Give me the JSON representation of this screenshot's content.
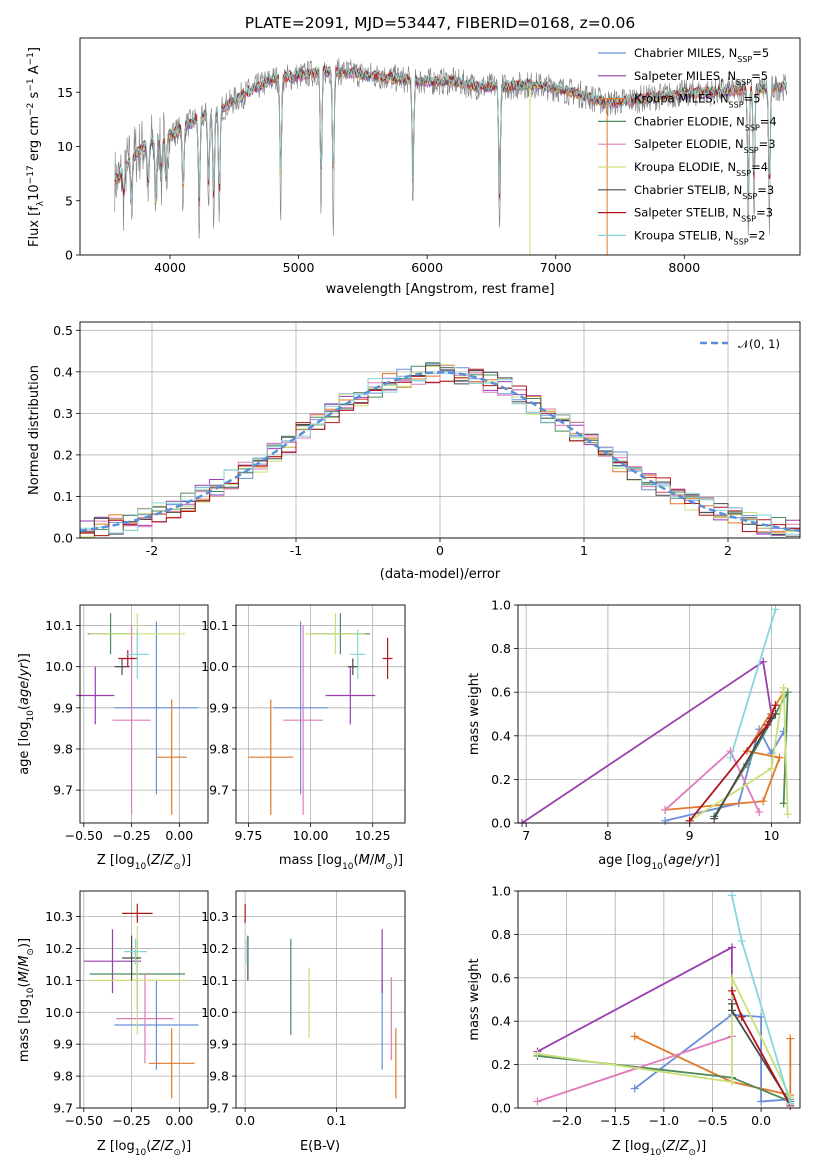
{
  "title": "PLATE=2091, MJD=53447, FIBERID=0168, z=0.06",
  "colors": {
    "Chabrier MILES": "#6a8edb",
    "Salpeter MILES": "#9a3fb0",
    "Kroupa MILES": "#e07a2a",
    "Chabrier ELODIE": "#4f8a5b",
    "Salpeter ELODIE": "#e07bb9",
    "Kroupa ELODIE": "#c9e07a",
    "Chabrier STELIB": "#4a4a4a",
    "Salpeter STELIB": "#b0161c",
    "Kroupa STELIB": "#86d6dc",
    "data": "#7f7f7f",
    "normal": "#5b8fd6"
  },
  "chart_data": [
    {
      "id": "spectrum",
      "type": "line",
      "xlabel": "wavelength [Angstrom, rest frame]",
      "ylabel": "Flux [f_λ 10^-17 erg cm^-2 s^-1 A^-1]",
      "xlim": [
        3300,
        8900
      ],
      "ylim": [
        0,
        20
      ],
      "xticks": [
        4000,
        5000,
        6000,
        7000,
        8000
      ],
      "yticks": [
        0,
        5,
        10,
        15
      ],
      "grid": false,
      "legend_position": "right",
      "legend": [
        {
          "label": "Chabrier MILES, N",
          "sub": "SSP",
          "eq": "=5",
          "model": "Chabrier MILES"
        },
        {
          "label": "Salpeter MILES, N",
          "sub": "SSP",
          "eq": "=5",
          "model": "Salpeter MILES"
        },
        {
          "label": "Kroupa MILES, N",
          "sub": "SSP",
          "eq": "=5",
          "model": "Kroupa MILES"
        },
        {
          "label": "Chabrier ELODIE, N",
          "sub": "SSP",
          "eq": "=4",
          "model": "Chabrier ELODIE"
        },
        {
          "label": "Salpeter ELODIE, N",
          "sub": "SSP",
          "eq": "=3",
          "model": "Salpeter ELODIE"
        },
        {
          "label": "Kroupa ELODIE, N",
          "sub": "SSP",
          "eq": "=4",
          "model": "Kroupa ELODIE"
        },
        {
          "label": "Chabrier STELIB, N",
          "sub": "SSP",
          "eq": "=3",
          "model": "Chabrier STELIB"
        },
        {
          "label": "Salpeter STELIB, N",
          "sub": "SSP",
          "eq": "=3",
          "model": "Salpeter STELIB"
        },
        {
          "label": "Kroupa STELIB, N",
          "sub": "SSP",
          "eq": "=2",
          "model": "Kroupa STELIB"
        }
      ],
      "continuum": [
        [
          3600,
          7
        ],
        [
          3700,
          9
        ],
        [
          3800,
          10
        ],
        [
          3900,
          10.5
        ],
        [
          4000,
          11
        ],
        [
          4200,
          12.5
        ],
        [
          4400,
          13.5
        ],
        [
          4600,
          15
        ],
        [
          4800,
          16.2
        ],
        [
          5000,
          16.5
        ],
        [
          5200,
          17
        ],
        [
          5400,
          16.8
        ],
        [
          5600,
          16.5
        ],
        [
          5800,
          16.2
        ],
        [
          6000,
          16
        ],
        [
          6200,
          16
        ],
        [
          6400,
          15.5
        ],
        [
          6600,
          15.5
        ],
        [
          6800,
          15.7
        ],
        [
          7000,
          15.4
        ],
        [
          7200,
          14.8
        ],
        [
          7400,
          14
        ],
        [
          7600,
          14.3
        ],
        [
          7800,
          14.6
        ],
        [
          8000,
          14.9
        ],
        [
          8200,
          15
        ],
        [
          8400,
          15.2
        ],
        [
          8800,
          15.5
        ]
      ],
      "dips": [
        [
          3640,
          3
        ],
        [
          3700,
          5
        ],
        [
          3830,
          5
        ],
        [
          3890,
          7
        ],
        [
          3933,
          4
        ],
        [
          3968,
          5.5
        ],
        [
          4102,
          8
        ],
        [
          4227,
          10.5
        ],
        [
          4300,
          9
        ],
        [
          4340,
          10.5
        ],
        [
          4383,
          11
        ],
        [
          4861,
          12.5
        ],
        [
          5175,
          13
        ],
        [
          5270,
          14
        ],
        [
          5890,
          12
        ],
        [
          6563,
          13.8
        ],
        [
          8498,
          13
        ],
        [
          8542,
          12.5
        ],
        [
          8662,
          13
        ]
      ],
      "spikes": [
        {
          "x": 6800,
          "model": "Kroupa ELODIE"
        },
        {
          "x": 7400,
          "model": "Kroupa MILES"
        }
      ]
    },
    {
      "id": "residuals",
      "type": "histogram",
      "xlabel": "(data-model)/error",
      "ylabel": "Normed distribution",
      "xlim": [
        -2.5,
        2.5
      ],
      "ylim": [
        0,
        0.52
      ],
      "xticks": [
        -2,
        -1,
        0,
        1,
        2
      ],
      "yticks": [
        0,
        0.1,
        0.2,
        0.3,
        0.4,
        0.5
      ],
      "grid": true,
      "bin_width": 0.1,
      "legend_position": "top-right",
      "normal_label": "𝒩(0, 1)",
      "normal": {
        "mean": 0,
        "sigma": 1
      }
    },
    {
      "id": "age-vs-Z",
      "type": "errorbar",
      "xlabel": "Z [log10(Z/Z⊙)]",
      "ylabel": "age [log10(age/yr)]",
      "xlim": [
        -0.52,
        0.15
      ],
      "ylim": [
        9.62,
        10.15
      ],
      "xticks": [
        -0.5,
        -0.25,
        0.0
      ],
      "xtick_labels": [
        "−0.50",
        "−0.25",
        "0.00"
      ],
      "yticks": [
        9.7,
        9.8,
        9.9,
        10.0,
        10.1
      ],
      "grid": true,
      "points": [
        {
          "model": "Chabrier MILES",
          "x": -0.12,
          "xerr": 0.22,
          "y": 9.9,
          "yerr": 0.21
        },
        {
          "model": "Salpeter MILES",
          "x": -0.44,
          "xerr": 0.1,
          "y": 9.93,
          "yerr": 0.07
        },
        {
          "model": "Kroupa MILES",
          "x": -0.04,
          "xerr": 0.08,
          "y": 9.78,
          "yerr": 0.14
        },
        {
          "model": "Chabrier ELODIE",
          "x": -0.36,
          "xerr": 0.12,
          "y": 10.08,
          "yerr": 0.05
        },
        {
          "model": "Salpeter ELODIE",
          "x": -0.25,
          "xerr": 0.1,
          "y": 9.87,
          "yerr": 0.23
        },
        {
          "model": "Kroupa ELODIE",
          "x": -0.22,
          "xerr": 0.25,
          "y": 10.08,
          "yerr": 0.05
        },
        {
          "model": "Chabrier STELIB",
          "x": -0.3,
          "xerr": 0.04,
          "y": 10.0,
          "yerr": 0.02
        },
        {
          "model": "Salpeter STELIB",
          "x": -0.27,
          "xerr": 0.05,
          "y": 10.02,
          "yerr": 0.02
        },
        {
          "model": "Kroupa STELIB",
          "x": -0.22,
          "xerr": 0.06,
          "y": 10.03,
          "yerr": 0.06
        }
      ]
    },
    {
      "id": "age-vs-mass",
      "type": "errorbar",
      "xlabel": "mass [log10(M/M⊙)]",
      "ylabel": "",
      "xlim": [
        9.7,
        10.38
      ],
      "ylim": [
        9.62,
        10.15
      ],
      "xticks": [
        9.75,
        10.0,
        10.25
      ],
      "xtick_labels": [
        "9.75",
        "10.00",
        "10.25"
      ],
      "yticks": [
        9.7,
        9.8,
        9.9,
        10.0,
        10.1
      ],
      "grid": true,
      "points": [
        {
          "model": "Chabrier MILES",
          "x": 9.96,
          "xerr": 0.11,
          "y": 9.9,
          "yerr": 0.21
        },
        {
          "model": "Salpeter MILES",
          "x": 10.16,
          "xerr": 0.1,
          "y": 9.93,
          "yerr": 0.07
        },
        {
          "model": "Kroupa MILES",
          "x": 9.84,
          "xerr": 0.09,
          "y": 9.78,
          "yerr": 0.14
        },
        {
          "model": "Chabrier ELODIE",
          "x": 10.12,
          "xerr": 0.12,
          "y": 10.08,
          "yerr": 0.05
        },
        {
          "model": "Salpeter ELODIE",
          "x": 9.97,
          "xerr": 0.08,
          "y": 9.87,
          "yerr": 0.23
        },
        {
          "model": "Kroupa ELODIE",
          "x": 10.1,
          "xerr": 0.12,
          "y": 10.08,
          "yerr": 0.05
        },
        {
          "model": "Chabrier STELIB",
          "x": 10.17,
          "xerr": 0.02,
          "y": 10.0,
          "yerr": 0.02
        },
        {
          "model": "Salpeter STELIB",
          "x": 10.31,
          "xerr": 0.02,
          "y": 10.02,
          "yerr": 0.05
        },
        {
          "model": "Kroupa STELIB",
          "x": 10.19,
          "xerr": 0.03,
          "y": 10.03,
          "yerr": 0.06
        }
      ]
    },
    {
      "id": "weight-vs-age",
      "type": "line",
      "xlabel": "age [log10(age/yr)]",
      "ylabel": "mass weight",
      "xlim": [
        6.9,
        10.35
      ],
      "ylim": [
        0,
        1
      ],
      "xticks": [
        7,
        8,
        9,
        10
      ],
      "yticks": [
        0,
        0.2,
        0.4,
        0.6,
        0.8,
        1.0
      ],
      "ytick_labels": [
        "0.0",
        "0.2",
        "0.4",
        "0.6",
        "0.8",
        "1.0"
      ],
      "grid": true,
      "series": [
        {
          "model": "Chabrier MILES",
          "points": [
            [
              8.7,
              0.01
            ],
            [
              9.6,
              0.09
            ],
            [
              9.85,
              0.43
            ],
            [
              10.0,
              0.32
            ],
            [
              10.15,
              0.42
            ]
          ]
        },
        {
          "model": "Salpeter MILES",
          "points": [
            [
              6.95,
              0.0
            ],
            [
              9.9,
              0.74
            ],
            [
              10.0,
              0.5
            ]
          ]
        },
        {
          "model": "Kroupa MILES",
          "points": [
            [
              8.7,
              0.06
            ],
            [
              9.9,
              0.1
            ],
            [
              10.1,
              0.3
            ],
            [
              9.7,
              0.33
            ],
            [
              10.15,
              0.6
            ]
          ]
        },
        {
          "model": "Chabrier ELODIE",
          "points": [
            [
              9.3,
              0.03
            ],
            [
              9.7,
              0.27
            ],
            [
              10.2,
              0.6
            ],
            [
              10.15,
              0.09
            ]
          ]
        },
        {
          "model": "Salpeter ELODIE",
          "points": [
            [
              8.7,
              0.06
            ],
            [
              9.5,
              0.33
            ],
            [
              9.85,
              0.05
            ]
          ]
        },
        {
          "model": "Kroupa ELODIE",
          "points": [
            [
              9.0,
              0.01
            ],
            [
              10.0,
              0.25
            ],
            [
              10.15,
              0.62
            ],
            [
              10.2,
              0.04
            ]
          ]
        },
        {
          "model": "Chabrier STELIB",
          "points": [
            [
              9.3,
              0.02
            ],
            [
              10.0,
              0.48
            ],
            [
              10.05,
              0.5
            ]
          ]
        },
        {
          "model": "Salpeter STELIB",
          "points": [
            [
              9.0,
              0.01
            ],
            [
              9.95,
              0.45
            ],
            [
              10.05,
              0.54
            ]
          ]
        },
        {
          "model": "Kroupa STELIB",
          "points": [
            [
              9.5,
              0.3
            ],
            [
              10.05,
              0.98
            ]
          ]
        }
      ]
    },
    {
      "id": "mass-vs-Z",
      "type": "errorbar",
      "xlabel": "Z [log10(Z/Z⊙)]",
      "ylabel": "mass [log10(M/M⊙)]",
      "xlim": [
        -0.52,
        0.15
      ],
      "ylim": [
        9.7,
        10.38
      ],
      "xticks": [
        -0.5,
        -0.25,
        0.0
      ],
      "xtick_labels": [
        "−0.50",
        "−0.25",
        "0.00"
      ],
      "yticks": [
        9.7,
        9.8,
        9.9,
        10.0,
        10.1,
        10.2,
        10.3
      ],
      "grid": true,
      "points": [
        {
          "model": "Chabrier MILES",
          "x": -0.12,
          "xerr": 0.22,
          "y": 9.96,
          "yerr": 0.14
        },
        {
          "model": "Salpeter MILES",
          "x": -0.35,
          "xerr": 0.15,
          "y": 10.16,
          "yerr": 0.1
        },
        {
          "model": "Kroupa MILES",
          "x": -0.04,
          "xerr": 0.12,
          "y": 9.84,
          "yerr": 0.11
        },
        {
          "model": "Chabrier ELODIE",
          "x": -0.22,
          "xerr": 0.25,
          "y": 10.12,
          "yerr": 0.11
        },
        {
          "model": "Salpeter ELODIE",
          "x": -0.18,
          "xerr": 0.15,
          "y": 9.98,
          "yerr": 0.14
        },
        {
          "model": "Kroupa ELODIE",
          "x": -0.22,
          "xerr": 0.25,
          "y": 10.1,
          "yerr": 0.17
        },
        {
          "model": "Chabrier STELIB",
          "x": -0.25,
          "xerr": 0.05,
          "y": 10.17,
          "yerr": 0.07
        },
        {
          "model": "Salpeter STELIB",
          "x": -0.22,
          "xerr": 0.08,
          "y": 10.31,
          "yerr": 0.03
        },
        {
          "model": "Kroupa STELIB",
          "x": -0.23,
          "xerr": 0.06,
          "y": 10.19,
          "yerr": 0.04
        }
      ]
    },
    {
      "id": "mass-vs-EBV",
      "type": "errorbar",
      "xlabel": "E(B-V)",
      "ylabel": "",
      "xlim": [
        -0.01,
        0.175
      ],
      "ylim": [
        9.7,
        10.38
      ],
      "xticks": [
        0.0,
        0.1
      ],
      "xtick_labels": [
        "0.0",
        "0.1"
      ],
      "yticks": [
        9.7,
        9.8,
        9.9,
        10.0,
        10.1,
        10.2,
        10.3
      ],
      "grid": true,
      "points": [
        {
          "model": "Chabrier MILES",
          "x": 0.15,
          "xerr": 0.0,
          "y": 9.96,
          "yerr": 0.14
        },
        {
          "model": "Salpeter MILES",
          "x": 0.15,
          "xerr": 0.0,
          "y": 10.16,
          "yerr": 0.1
        },
        {
          "model": "Kroupa MILES",
          "x": 0.165,
          "xerr": 0.0,
          "y": 9.84,
          "yerr": 0.11
        },
        {
          "model": "Chabrier ELODIE",
          "x": 0.05,
          "xerr": 0.0,
          "y": 10.08,
          "yerr": 0.15
        },
        {
          "model": "Salpeter ELODIE",
          "x": 0.16,
          "xerr": 0.0,
          "y": 9.98,
          "yerr": 0.13
        },
        {
          "model": "Kroupa ELODIE",
          "x": 0.07,
          "xerr": 0.0,
          "y": 10.03,
          "yerr": 0.11
        },
        {
          "model": "Chabrier STELIB",
          "x": 0.003,
          "xerr": 0.0,
          "y": 10.17,
          "yerr": 0.07
        },
        {
          "model": "Salpeter STELIB",
          "x": 0.0,
          "xerr": 0.0,
          "y": 10.31,
          "yerr": 0.03
        },
        {
          "model": "Kroupa STELIB",
          "x": 0.002,
          "xerr": 0.0,
          "y": 10.19,
          "yerr": 0.04
        }
      ]
    },
    {
      "id": "weight-vs-Z",
      "type": "line",
      "xlabel": "Z [log10(Z/Z⊙)]",
      "ylabel": "mass weight",
      "xlim": [
        -2.5,
        0.4
      ],
      "ylim": [
        0,
        1
      ],
      "xticks": [
        -2.0,
        -1.5,
        -1.0,
        -0.5,
        0.0
      ],
      "xtick_labels": [
        "−2.0",
        "−1.5",
        "−1.0",
        "−0.5",
        "0.0"
      ],
      "yticks": [
        0,
        0.2,
        0.4,
        0.6,
        0.8,
        1.0
      ],
      "ytick_labels": [
        "0.0",
        "0.2",
        "0.4",
        "0.6",
        "0.8",
        "1.0"
      ],
      "grid": true,
      "series": [
        {
          "model": "Chabrier MILES",
          "points": [
            [
              -1.3,
              0.09
            ],
            [
              -0.3,
              0.43
            ],
            [
              0.0,
              0.42
            ],
            [
              0.0,
              0.03
            ],
            [
              0.3,
              0.04
            ]
          ]
        },
        {
          "model": "Salpeter MILES",
          "points": [
            [
              -2.3,
              0.26
            ],
            [
              -0.3,
              0.74
            ],
            [
              -0.3,
              0.5
            ]
          ]
        },
        {
          "model": "Kroupa MILES",
          "points": [
            [
              -1.3,
              0.33
            ],
            [
              -0.3,
              0.12
            ],
            [
              0.3,
              0.06
            ],
            [
              0.3,
              0.32
            ]
          ]
        },
        {
          "model": "Chabrier ELODIE",
          "points": [
            [
              -2.3,
              0.24
            ],
            [
              -0.3,
              0.14
            ],
            [
              0.3,
              0.03
            ]
          ]
        },
        {
          "model": "Salpeter ELODIE",
          "points": [
            [
              -2.3,
              0.03
            ],
            [
              -0.3,
              0.33
            ]
          ]
        },
        {
          "model": "Kroupa ELODIE",
          "points": [
            [
              -2.3,
              0.25
            ],
            [
              -0.3,
              0.12
            ],
            [
              -0.3,
              0.6
            ],
            [
              0.3,
              0.05
            ]
          ]
        },
        {
          "model": "Chabrier STELIB",
          "points": [
            [
              -0.3,
              0.48
            ],
            [
              -0.3,
              0.45
            ],
            [
              0.3,
              0.02
            ]
          ]
        },
        {
          "model": "Salpeter STELIB",
          "points": [
            [
              -0.3,
              0.54
            ],
            [
              -0.2,
              0.42
            ],
            [
              0.3,
              0.01
            ]
          ]
        },
        {
          "model": "Kroupa STELIB",
          "points": [
            [
              -0.3,
              0.98
            ],
            [
              -0.2,
              0.77
            ],
            [
              0.3,
              0.02
            ]
          ]
        }
      ]
    }
  ]
}
